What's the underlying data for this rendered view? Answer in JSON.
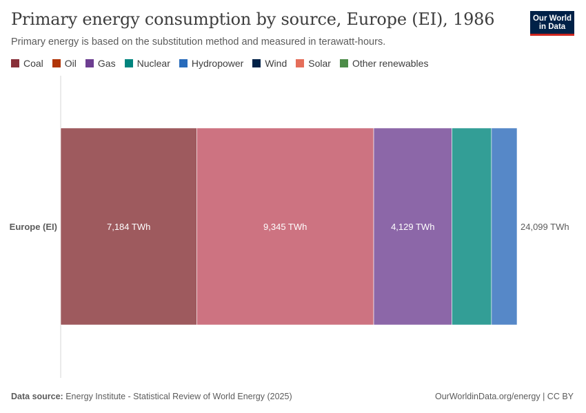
{
  "header": {
    "title": "Primary energy consumption by source, Europe (EI), 1986",
    "subtitle": "Primary energy is based on the substitution method and measured in terawatt-hours."
  },
  "logo": {
    "line1": "Our World",
    "line2": "in Data"
  },
  "footer": {
    "source_label": "Data source:",
    "source_text": "Energy Institute - Statistical Review of World Energy (2025)",
    "credit": "OurWorldinData.org/energy | CC BY"
  },
  "chart_data": {
    "type": "bar",
    "orientation": "horizontal",
    "stacked": true,
    "categories": [
      "Europe (EI)"
    ],
    "unit": "TWh",
    "total_label": "24,099 TWh",
    "legend_position": "top-left",
    "series": [
      {
        "name": "Coal",
        "color": "#9e5a5e",
        "legend_color": "#883039",
        "values": [
          7184
        ],
        "label": "7,184 TWh"
      },
      {
        "name": "Oil",
        "color": "#cd7381",
        "legend_color": "#b13507",
        "values": [
          9345
        ],
        "label": "9,345 TWh"
      },
      {
        "name": "Gas",
        "color": "#8c67a8",
        "legend_color": "#6d3e91",
        "values": [
          4129
        ],
        "label": "4,129 TWh"
      },
      {
        "name": "Nuclear",
        "color": "#339e96",
        "legend_color": "#00847e",
        "values": [
          2090
        ],
        "label": ""
      },
      {
        "name": "Hydropower",
        "color": "#5688c8",
        "legend_color": "#286bbb",
        "values": [
          1351
        ],
        "label": ""
      },
      {
        "name": "Wind",
        "color": "#1a3b6e",
        "legend_color": "#002147",
        "values": [
          0
        ],
        "label": ""
      },
      {
        "name": "Solar",
        "color": "#e56e5a",
        "legend_color": "#e56e5a",
        "values": [
          0
        ],
        "label": ""
      },
      {
        "name": "Other renewables",
        "color": "#4c8c48",
        "legend_color": "#4c8c48",
        "values": [
          0
        ],
        "label": ""
      }
    ]
  }
}
